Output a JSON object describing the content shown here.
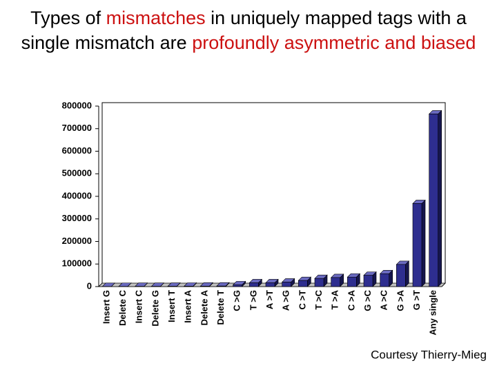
{
  "chart_data": {
    "type": "bar",
    "title": [
      {
        "text": "Types of ",
        "color": "#000000"
      },
      {
        "text": "mismatches",
        "color": "#cc1111"
      },
      {
        "text": " in uniquely mapped tags with a single mismatch are ",
        "color": "#000000"
      },
      {
        "text": "profoundly asymmetric and biased",
        "color": "#cc1111"
      }
    ],
    "categories": [
      "Insert G",
      "Delete C",
      "Insert C",
      "Delete G",
      "Insert T",
      "Insert A",
      "Delete A",
      "Delete T",
      "C >G",
      "T >G",
      "A >T",
      "A >G",
      "C >T",
      "T >C",
      "T >A",
      "C >A",
      "G >C",
      "A >C",
      "G >A",
      "G >T",
      "Any single"
    ],
    "values": [
      500,
      800,
      1000,
      1000,
      1200,
      1500,
      2000,
      2500,
      8000,
      17000,
      17000,
      20000,
      27000,
      36000,
      40000,
      42000,
      50000,
      57000,
      98000,
      368000,
      765000
    ],
    "color": "#2e2e8f",
    "ylim": [
      0,
      800000
    ],
    "yticks": [
      0,
      100000,
      200000,
      300000,
      400000,
      500000,
      600000,
      700000,
      800000
    ],
    "grid": false,
    "footnote": "Courtesy Thierry-Mieg"
  }
}
